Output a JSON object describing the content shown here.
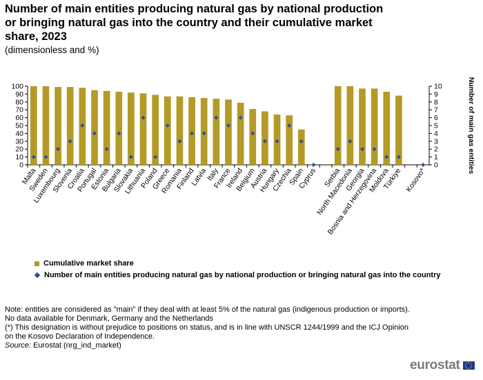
{
  "title": "Number of main entities producing natural gas by national production or bringing natural gas into the country and their cumulative market share, 2023",
  "subtitle": "(dimensionless and %)",
  "chart_data": {
    "type": "bar",
    "categories": [
      "Malta",
      "Sweden",
      "Luxembourg",
      "Slovenia",
      "Croatia",
      "Portugal",
      "Estonia",
      "Bulgaria",
      "Slovakia",
      "Lithuania",
      "Poland",
      "Greece",
      "Romania",
      "Finland",
      "Latvia",
      "Italy",
      "France",
      "Ireland",
      "Belgium",
      "Austria",
      "Hungary",
      "Czechia",
      "Spain",
      "Cyprus",
      "",
      "Serbia",
      "North Macedonia",
      "Georgia",
      "Bosnia and Herzegovina",
      "Moldova",
      "Türkiye",
      "",
      "Kosovo*"
    ],
    "series": [
      {
        "name": "Cumulative market share",
        "type": "bar",
        "axis": "left",
        "color": "#b49a26",
        "values": [
          100,
          100,
          99,
          99,
          98,
          95,
          94,
          93,
          92,
          91,
          89,
          87,
          87,
          86,
          85,
          84,
          83,
          79,
          71,
          68,
          64,
          63,
          45,
          null,
          null,
          100,
          100,
          97,
          97,
          93,
          88,
          null,
          null
        ]
      },
      {
        "name": "Number of main entities  producing natural gas by national production or bringing natural gas into the country",
        "type": "scatter",
        "axis": "right",
        "color": "#2f4f9a",
        "values": [
          1,
          1,
          2,
          3,
          5,
          4,
          2,
          4,
          1,
          6,
          1,
          5,
          3,
          4,
          4,
          6,
          5,
          6,
          4,
          3,
          3,
          5,
          3,
          0,
          null,
          2,
          3,
          2,
          2,
          1,
          1,
          null,
          0
        ]
      }
    ],
    "yticks_left": [
      0,
      10,
      20,
      30,
      40,
      50,
      60,
      70,
      80,
      90,
      100
    ],
    "yticks_right": [
      0,
      1,
      2,
      3,
      4,
      5,
      6,
      7,
      8,
      9,
      10
    ],
    "ylim_left": [
      0,
      100
    ],
    "ylim_right": [
      0,
      10
    ],
    "ylabel_right": "Number of main gas entities",
    "grid": false,
    "legend_position": "bottom-left"
  },
  "legend": {
    "bar_label": "Cumulative market share",
    "dot_label": "Number of main entities  producing natural gas by national production or bringing natural gas into the country"
  },
  "notes": {
    "line1": "Note: entities are considered as \"main\" if they deal with at least 5% of the natural gas (indigenous production or imports).",
    "line2": "No data available for Denmark, Germany and the Netherlands",
    "line3": "(*) This designation is without prejudice to positions on status, and is in line with UNSCR 1244/1999 and the ICJ Opinion on the Kosovo Declaration of Independence.",
    "source_label": "Source:",
    "source_text": " Eurostat (nrg_ind_market)"
  },
  "logo": {
    "text": "eurostat"
  }
}
